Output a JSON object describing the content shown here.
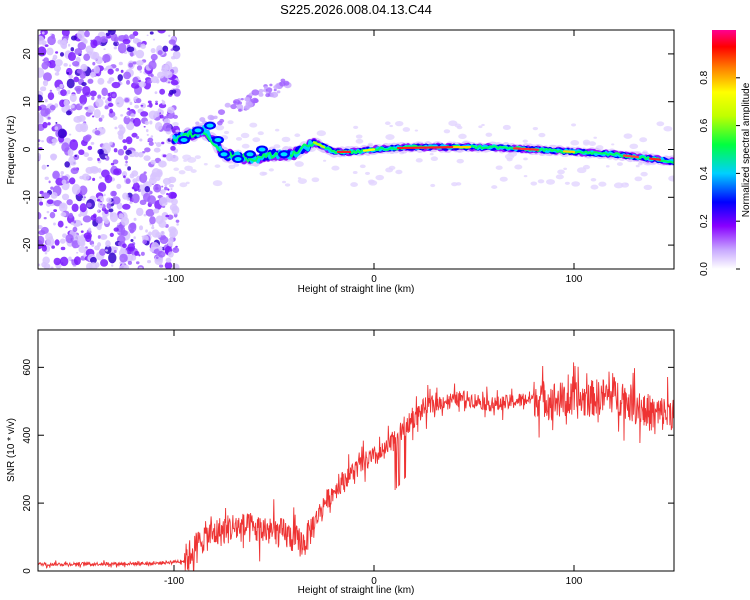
{
  "title": "S225.2026.008.04.13.C44",
  "chart_data": [
    {
      "type": "heatmap",
      "xlabel": "Height of straight line (km)",
      "ylabel": "Frequency (Hz)",
      "xlim": [
        -168,
        150
      ],
      "ylim": [
        -25,
        25
      ],
      "xticks": [
        -100,
        0,
        100
      ],
      "yticks": [
        -20,
        -10,
        0,
        10,
        20
      ],
      "colorbar": {
        "label": "Normalized spectral amplitude",
        "range": [
          0,
          1
        ],
        "ticks": [
          0.0,
          0.2,
          0.4,
          0.6,
          0.8
        ],
        "colors": [
          "#ffffff",
          "#b070ff",
          "#0000ff",
          "#00ffff",
          "#00ff00",
          "#ffff00",
          "#ff8000",
          "#ff0000",
          "#ff00a0"
        ]
      },
      "ridge": {
        "description_points_km_hz": [
          [
            -100,
            2
          ],
          [
            -85,
            4
          ],
          [
            -75,
            -1
          ],
          [
            -60,
            -2
          ],
          [
            -50,
            -1
          ],
          [
            -40,
            -1
          ],
          [
            -30,
            1.5
          ],
          [
            -20,
            -0.5
          ],
          [
            -10,
            -0.5
          ],
          [
            0,
            0
          ],
          [
            20,
            0.5
          ],
          [
            40,
            0.5
          ],
          [
            60,
            0.5
          ],
          [
            80,
            0
          ],
          [
            100,
            -0.5
          ],
          [
            120,
            -1
          ],
          [
            140,
            -2
          ],
          [
            150,
            -2.5
          ]
        ]
      }
    },
    {
      "type": "line",
      "xlabel": "Height of straight line (km)",
      "ylabel": "SNR (10 * v/v)",
      "xlim": [
        -168,
        150
      ],
      "ylim": [
        0,
        710
      ],
      "xticks": [
        -100,
        0,
        100
      ],
      "yticks": [
        0,
        200,
        400,
        600
      ],
      "color": "#ee3333",
      "envelope": {
        "x": [
          -168,
          -110,
          -95,
          -85,
          -70,
          -55,
          -45,
          -35,
          -30,
          -25,
          -15,
          -5,
          5,
          15,
          25,
          35,
          45,
          60,
          80,
          100,
          120,
          140,
          150
        ],
        "y": [
          20,
          22,
          30,
          100,
          130,
          120,
          110,
          80,
          140,
          200,
          270,
          320,
          350,
          420,
          480,
          500,
          510,
          490,
          510,
          500,
          520,
          460,
          470
        ]
      }
    }
  ]
}
